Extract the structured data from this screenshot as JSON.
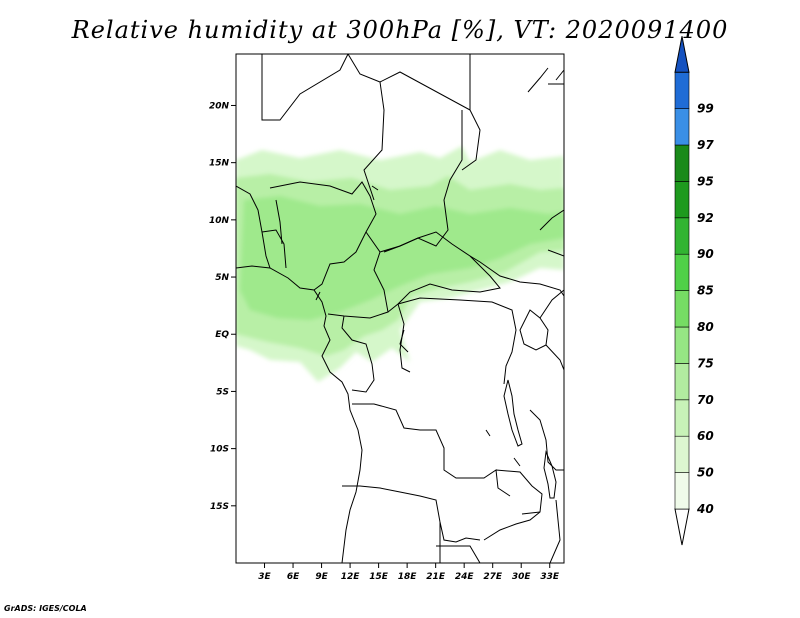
{
  "title": "Relative humidity at 300hPa [%], VT: 2020091400",
  "credit": "GrADS: IGES/COLA",
  "map": {
    "lat_ticks": [
      {
        "lat": 20,
        "label": "20N"
      },
      {
        "lat": 15,
        "label": "15N"
      },
      {
        "lat": 10,
        "label": "10N"
      },
      {
        "lat": 5,
        "label": "5N"
      },
      {
        "lat": 0,
        "label": "EQ"
      },
      {
        "lat": -5,
        "label": "5S"
      },
      {
        "lat": -10,
        "label": "10S"
      },
      {
        "lat": -15,
        "label": "15S"
      }
    ],
    "lon_ticks": [
      {
        "lon": 3,
        "label": "3E"
      },
      {
        "lon": 6,
        "label": "6E"
      },
      {
        "lon": 9,
        "label": "9E"
      },
      {
        "lon": 12,
        "label": "12E"
      },
      {
        "lon": 15,
        "label": "15E"
      },
      {
        "lon": 18,
        "label": "18E"
      },
      {
        "lon": 21,
        "label": "21E"
      },
      {
        "lon": 24,
        "label": "24E"
      },
      {
        "lon": 27,
        "label": "27E"
      },
      {
        "lon": 30,
        "label": "30E"
      },
      {
        "lon": 33,
        "label": "33E"
      }
    ],
    "lon_range": [
      0,
      34.5
    ],
    "lat_range": [
      -20,
      24.5
    ]
  },
  "colorbar": {
    "levels": [
      {
        "label": "40",
        "color": "#f0fbea"
      },
      {
        "label": "50",
        "color": "#dcf6d0"
      },
      {
        "label": "60",
        "color": "#c8f2b8"
      },
      {
        "label": "70",
        "color": "#b2eca0"
      },
      {
        "label": "75",
        "color": "#96e684"
      },
      {
        "label": "80",
        "color": "#76dc64"
      },
      {
        "label": "85",
        "color": "#50d048"
      },
      {
        "label": "90",
        "color": "#32b432"
      },
      {
        "label": "92",
        "color": "#1e9a1e"
      },
      {
        "label": "95",
        "color": "#1a8a1a"
      },
      {
        "label": "97",
        "color": "#3a8fe6"
      },
      {
        "label": "99",
        "color": "#1f6cd6"
      }
    ],
    "top_color": "#1552c0",
    "bottom_color": "#ffffff"
  },
  "colors": {
    "rh_light": "#ccf5bf",
    "rh_mid": "#a8ec94",
    "rh_strong": "#8ee47a"
  }
}
